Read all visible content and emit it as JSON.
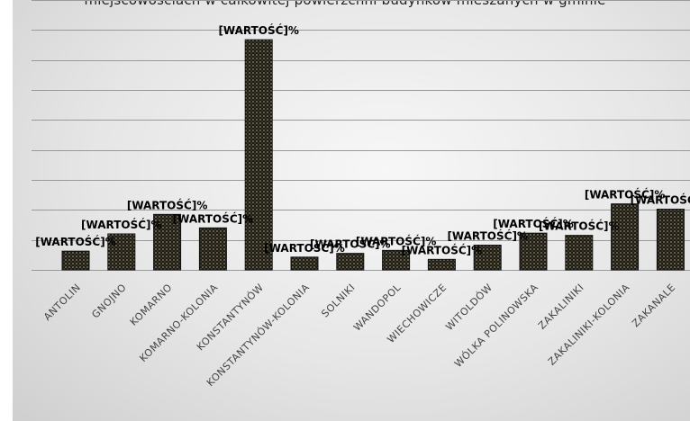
{
  "title": "miejscowościach w całkowitej powierzchni budynków mieszanych w gminie",
  "chart_data": {
    "type": "bar",
    "title": "miejscowościach w całkowitej powierzchni budynków mieszanych w gminie",
    "categories": [
      "ANTOLIN",
      "GNOJNO",
      "KOMARNO",
      "KOMARNO-KOLONIA",
      "KONSTANTYNÓW",
      "KONSTANTYNÓW-KOLONIA",
      "SOLNIKI",
      "WANDOPOL",
      "WIECHOWICZE",
      "WITOLDÓW",
      "WÓLKA POLINOWSKA",
      "ZAKALINIKI",
      "ZAKALINIKI-KOLONIA",
      "ZAKANALE"
    ],
    "values": [
      2.5,
      4.8,
      7.4,
      5.6,
      30.7,
      1.7,
      2.2,
      2.6,
      1.4,
      3.3,
      4.9,
      4.6,
      8.8,
      8.1
    ],
    "data_labels": [
      "[WARTOŚĆ]%",
      "[WARTOŚĆ]%",
      "[WARTOŚĆ]%",
      "[WARTOŚĆ]%",
      "[WARTOŚĆ]%",
      "[WARTOŚĆ]%",
      "[WARTOŚĆ]%",
      "[WARTOŚĆ]%",
      "[WARTOŚĆ]%",
      "[WARTOŚĆ]%",
      "[WARTOŚĆ]%",
      "[WARTOŚĆ]%",
      "[WARTOŚĆ]%",
      "[WARTOŚĆ]%"
    ],
    "ylim": [
      0,
      36
    ],
    "grid": true,
    "legend": "none",
    "colors": {
      "bar_fill": "#1c1a14",
      "bar_dots": "#c9b98a",
      "grid": "#9a9a9a",
      "background": "#e8e8e8"
    }
  }
}
